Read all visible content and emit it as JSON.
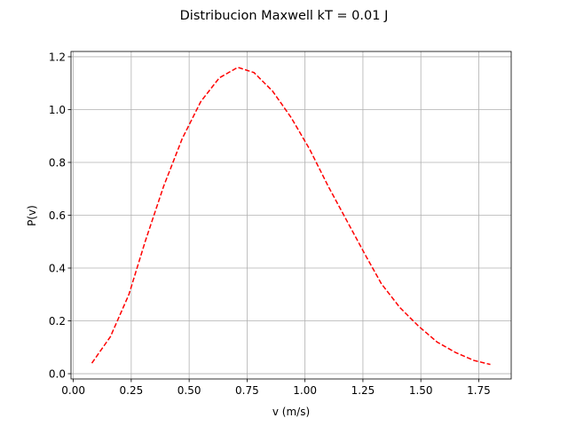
{
  "chart_data": {
    "type": "line",
    "title": "Distribucion Maxwell kT = 0.01 J",
    "xlabel": "v (m/s)",
    "ylabel": "P(v)",
    "xlim": [
      -0.01,
      1.89
    ],
    "ylim": [
      -0.02,
      1.22
    ],
    "xticks": [
      0.0,
      0.25,
      0.5,
      0.75,
      1.0,
      1.25,
      1.5,
      1.75
    ],
    "xtick_labels": [
      "0.00",
      "0.25",
      "0.50",
      "0.75",
      "1.00",
      "1.25",
      "1.50",
      "1.75"
    ],
    "yticks": [
      0.0,
      0.2,
      0.4,
      0.6,
      0.8,
      1.0,
      1.2
    ],
    "ytick_labels": [
      "0.0",
      "0.2",
      "0.4",
      "0.6",
      "0.8",
      "1.0",
      "1.2"
    ],
    "grid": true,
    "legend": false,
    "series": [
      {
        "color": "#ff0000",
        "linestyle": "dashed",
        "x": [
          0.08,
          0.16,
          0.24,
          0.31,
          0.39,
          0.47,
          0.55,
          0.63,
          0.71,
          0.78,
          0.86,
          0.94,
          1.02,
          1.1,
          1.18,
          1.26,
          1.33,
          1.41,
          1.49,
          1.57,
          1.65,
          1.73,
          1.8
        ],
        "y": [
          0.04,
          0.14,
          0.3,
          0.5,
          0.71,
          0.89,
          1.03,
          1.12,
          1.16,
          1.14,
          1.07,
          0.97,
          0.85,
          0.71,
          0.58,
          0.45,
          0.34,
          0.25,
          0.18,
          0.12,
          0.08,
          0.05,
          0.035
        ]
      }
    ]
  }
}
